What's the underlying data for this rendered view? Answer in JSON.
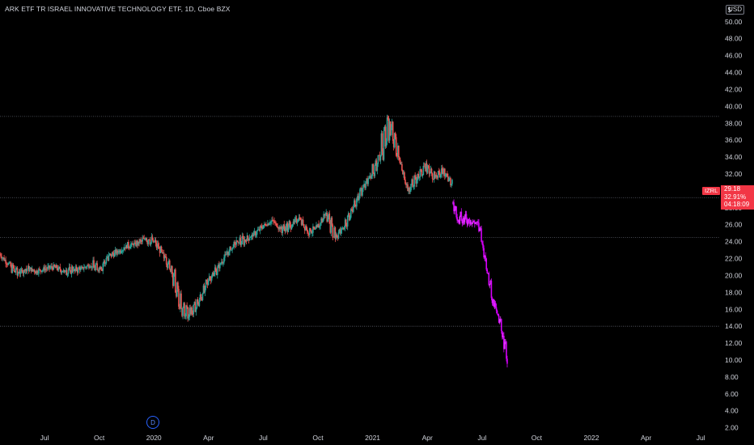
{
  "header": {
    "title": "ARK ETF TR ISRAEL INNOVATIVE TECHNOLOGY ETF, 1D, Cboe BZX",
    "currency": "USD",
    "currency_prefix": "$"
  },
  "price_label": {
    "symbol": "IZRL",
    "price": "29.18",
    "change": "32.91%",
    "countdown": "04:18:09"
  },
  "marker": {
    "label": "D"
  },
  "chart_data": {
    "type": "candlestick",
    "y_axis": {
      "range": [
        1.2,
        51.8
      ],
      "ticks": [
        2.0,
        4.0,
        6.0,
        8.0,
        10.0,
        12.0,
        14.0,
        16.0,
        18.0,
        20.0,
        22.0,
        24.0,
        26.0,
        28.0,
        30.0,
        32.0,
        34.0,
        36.0,
        38.0,
        40.0,
        42.0,
        44.0,
        46.0,
        48.0,
        50.0
      ]
    },
    "x_axis": {
      "tick_labels": [
        "Jul",
        "Oct",
        "2020",
        "Apr",
        "Jul",
        "Oct",
        "2021",
        "Apr",
        "Jul",
        "Oct",
        "2022",
        "Apr",
        "Jul"
      ]
    },
    "horizontal_lines": [
      38.8,
      29.2,
      24.5,
      14.0
    ],
    "series": [
      {
        "color": "historical",
        "points": [
          [
            22.5,
            22.5
          ],
          [
            21.2,
            22
          ],
          [
            20.3,
            20.8
          ],
          [
            20.8,
            21
          ],
          [
            20.5,
            20.4
          ],
          [
            20.8,
            20.8
          ],
          [
            21,
            20.8
          ],
          [
            20.5,
            19.8
          ],
          [
            20.6,
            21
          ],
          [
            20.8,
            20.6
          ],
          [
            21.3,
            20.5
          ],
          [
            20.7,
            21.5
          ],
          [
            22.3,
            22.5
          ],
          [
            22.8,
            23
          ],
          [
            23.5,
            23.8
          ],
          [
            23.7,
            24
          ],
          [
            24.3,
            25
          ],
          [
            24,
            24.5
          ],
          [
            22.5,
            21.5
          ],
          [
            20.5,
            18
          ],
          [
            16,
            14.2
          ],
          [
            15.5,
            16.5
          ],
          [
            17,
            18
          ],
          [
            19.5,
            20.5
          ],
          [
            20.8,
            21
          ],
          [
            22.5,
            23
          ],
          [
            23.8,
            24.5
          ],
          [
            24.2,
            24
          ],
          [
            24.8,
            25
          ],
          [
            25.8,
            26
          ],
          [
            26.5,
            26.3
          ],
          [
            25.5,
            24.5
          ],
          [
            25.8,
            25.5
          ],
          [
            26.8,
            27.3
          ],
          [
            25.2,
            24.8
          ],
          [
            25.5,
            26
          ],
          [
            27.5,
            25.5
          ],
          [
            24.5,
            25
          ],
          [
            25.8,
            27
          ],
          [
            28,
            29.2
          ],
          [
            30.5,
            31
          ],
          [
            31.8,
            33.5
          ],
          [
            34.5,
            38.5
          ],
          [
            38.2,
            36
          ],
          [
            34,
            33.5
          ],
          [
            30,
            31
          ],
          [
            31.5,
            32.5
          ],
          [
            33,
            32
          ],
          [
            31.5,
            32.5
          ],
          [
            32.5,
            31.8
          ],
          [
            30.5,
            30
          ]
        ]
      },
      {
        "color": "magenta",
        "points": [
          [
            28.5,
            27.5
          ],
          [
            26.8,
            25.5
          ],
          [
            26.8,
            25.8
          ],
          [
            26.5,
            26.8
          ],
          [
            26.2,
            26.5
          ],
          [
            26.5,
            25.2
          ],
          [
            23.5,
            22.5
          ],
          [
            20,
            18.5
          ],
          [
            17,
            16.5
          ],
          [
            15.2,
            14
          ],
          [
            13,
            11
          ],
          [
            9.8,
            9
          ]
        ]
      }
    ]
  }
}
